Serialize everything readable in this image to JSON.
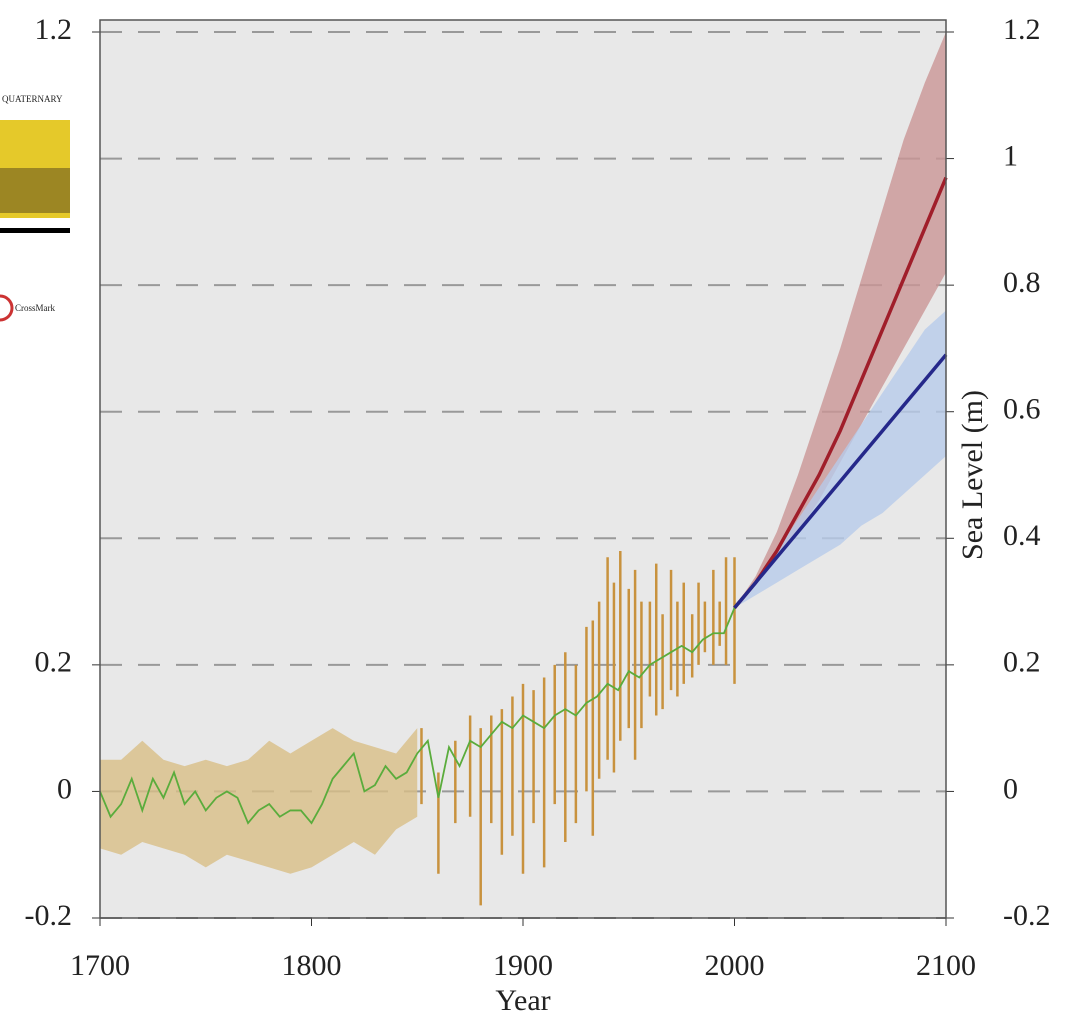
{
  "chart_data": {
    "type": "line",
    "xlabel": "Year",
    "y2label": "Sea Level (m)",
    "xlim": [
      1700,
      2100
    ],
    "xticks": [
      1700,
      1800,
      1900,
      2000,
      2100
    ],
    "ylim": [
      -0.2,
      1.2
    ],
    "yticks": [
      -0.2,
      0,
      0.2,
      1.2
    ],
    "y2lim": [
      -0.2,
      1.2
    ],
    "y2ticks": [
      -0.2,
      0,
      0.2,
      0.4,
      0.6,
      0.8,
      1,
      1.2
    ],
    "grid": true,
    "annotations": [
      "QUATERNARY",
      "CrossMark"
    ],
    "series": [
      {
        "kind": "band",
        "color": "#d8be86",
        "x": [
          1700,
          1710,
          1720,
          1730,
          1740,
          1750,
          1760,
          1770,
          1780,
          1790,
          1800,
          1810,
          1820,
          1830,
          1840,
          1850
        ],
        "upper": [
          0.05,
          0.05,
          0.08,
          0.05,
          0.04,
          0.05,
          0.04,
          0.05,
          0.08,
          0.06,
          0.08,
          0.1,
          0.08,
          0.07,
          0.06,
          0.1
        ],
        "lower": [
          -0.09,
          -0.1,
          -0.08,
          -0.09,
          -0.1,
          -0.12,
          -0.1,
          -0.11,
          -0.12,
          -0.13,
          -0.12,
          -0.1,
          -0.08,
          -0.1,
          -0.06,
          -0.04
        ]
      },
      {
        "kind": "errorbar",
        "color": "#c8923e",
        "x": [
          1852,
          1860,
          1868,
          1875,
          1880,
          1885,
          1890,
          1895,
          1900,
          1905,
          1910,
          1915,
          1920,
          1925,
          1930,
          1933,
          1936,
          1940,
          1943,
          1946,
          1950,
          1953,
          1956,
          1960,
          1963,
          1966,
          1970,
          1973,
          1976,
          1980,
          1983,
          1986,
          1990,
          1993,
          1996,
          2000
        ],
        "upper": [
          0.1,
          0.03,
          0.08,
          0.12,
          0.1,
          0.12,
          0.13,
          0.15,
          0.17,
          0.16,
          0.18,
          0.2,
          0.22,
          0.2,
          0.26,
          0.27,
          0.3,
          0.37,
          0.33,
          0.38,
          0.32,
          0.35,
          0.3,
          0.3,
          0.36,
          0.28,
          0.35,
          0.3,
          0.33,
          0.28,
          0.33,
          0.3,
          0.35,
          0.3,
          0.37,
          0.37
        ],
        "lower": [
          -0.02,
          -0.13,
          -0.05,
          -0.04,
          -0.18,
          -0.05,
          -0.1,
          -0.07,
          -0.13,
          -0.05,
          -0.12,
          -0.02,
          -0.08,
          -0.05,
          0.0,
          -0.07,
          0.02,
          0.05,
          0.03,
          0.08,
          0.1,
          0.05,
          0.1,
          0.15,
          0.12,
          0.13,
          0.16,
          0.15,
          0.17,
          0.18,
          0.2,
          0.22,
          0.2,
          0.23,
          0.2,
          0.17
        ]
      },
      {
        "kind": "band",
        "color": "#c99595",
        "x": [
          2000,
          2010,
          2020,
          2030,
          2040,
          2050,
          2060,
          2070,
          2080,
          2090,
          2100
        ],
        "upper": [
          0.29,
          0.34,
          0.41,
          0.5,
          0.6,
          0.7,
          0.81,
          0.92,
          1.03,
          1.12,
          1.2
        ],
        "lower": [
          0.29,
          0.33,
          0.37,
          0.41,
          0.46,
          0.52,
          0.58,
          0.64,
          0.7,
          0.76,
          0.82
        ]
      },
      {
        "kind": "band",
        "color": "#b7cbea",
        "x": [
          2000,
          2010,
          2020,
          2030,
          2040,
          2050,
          2060,
          2070,
          2080,
          2090,
          2100
        ],
        "upper": [
          0.29,
          0.33,
          0.38,
          0.43,
          0.48,
          0.53,
          0.58,
          0.63,
          0.68,
          0.73,
          0.76
        ],
        "lower": [
          0.29,
          0.31,
          0.33,
          0.35,
          0.37,
          0.39,
          0.42,
          0.44,
          0.47,
          0.5,
          0.53
        ]
      },
      {
        "kind": "line",
        "color": "#5aac3c",
        "x": [
          1700,
          1705,
          1710,
          1715,
          1720,
          1725,
          1730,
          1735,
          1740,
          1745,
          1750,
          1755,
          1760,
          1765,
          1770,
          1775,
          1780,
          1785,
          1790,
          1795,
          1800,
          1805,
          1810,
          1815,
          1820,
          1825,
          1830,
          1835,
          1840,
          1845,
          1850,
          1855,
          1860,
          1865,
          1870,
          1875,
          1880,
          1885,
          1890,
          1895,
          1900,
          1905,
          1910,
          1915,
          1920,
          1925,
          1930,
          1935,
          1940,
          1945,
          1950,
          1955,
          1960,
          1965,
          1970,
          1975,
          1980,
          1985,
          1990,
          1995,
          2000
        ],
        "values": [
          0,
          -0.04,
          -0.02,
          0.02,
          -0.03,
          0.02,
          -0.01,
          0.03,
          -0.02,
          0,
          -0.03,
          -0.01,
          0,
          -0.01,
          -0.05,
          -0.03,
          -0.02,
          -0.04,
          -0.03,
          -0.03,
          -0.05,
          -0.02,
          0.02,
          0.04,
          0.06,
          0,
          0.01,
          0.04,
          0.02,
          0.03,
          0.06,
          0.08,
          -0.01,
          0.07,
          0.04,
          0.08,
          0.07,
          0.09,
          0.11,
          0.1,
          0.12,
          0.11,
          0.1,
          0.12,
          0.13,
          0.12,
          0.14,
          0.15,
          0.17,
          0.16,
          0.19,
          0.18,
          0.2,
          0.21,
          0.22,
          0.23,
          0.22,
          0.24,
          0.25,
          0.25,
          0.29
        ]
      },
      {
        "kind": "line",
        "color": "#a01e2a",
        "x": [
          2000,
          2010,
          2020,
          2030,
          2040,
          2050,
          2060,
          2070,
          2080,
          2090,
          2100
        ],
        "values": [
          0.29,
          0.33,
          0.38,
          0.44,
          0.5,
          0.57,
          0.65,
          0.73,
          0.81,
          0.89,
          0.97
        ]
      },
      {
        "kind": "line",
        "color": "#25288a",
        "x": [
          2000,
          2010,
          2020,
          2030,
          2040,
          2050,
          2060,
          2070,
          2080,
          2090,
          2100
        ],
        "values": [
          0.29,
          0.33,
          0.37,
          0.41,
          0.45,
          0.49,
          0.53,
          0.57,
          0.61,
          0.65,
          0.69
        ]
      }
    ]
  }
}
